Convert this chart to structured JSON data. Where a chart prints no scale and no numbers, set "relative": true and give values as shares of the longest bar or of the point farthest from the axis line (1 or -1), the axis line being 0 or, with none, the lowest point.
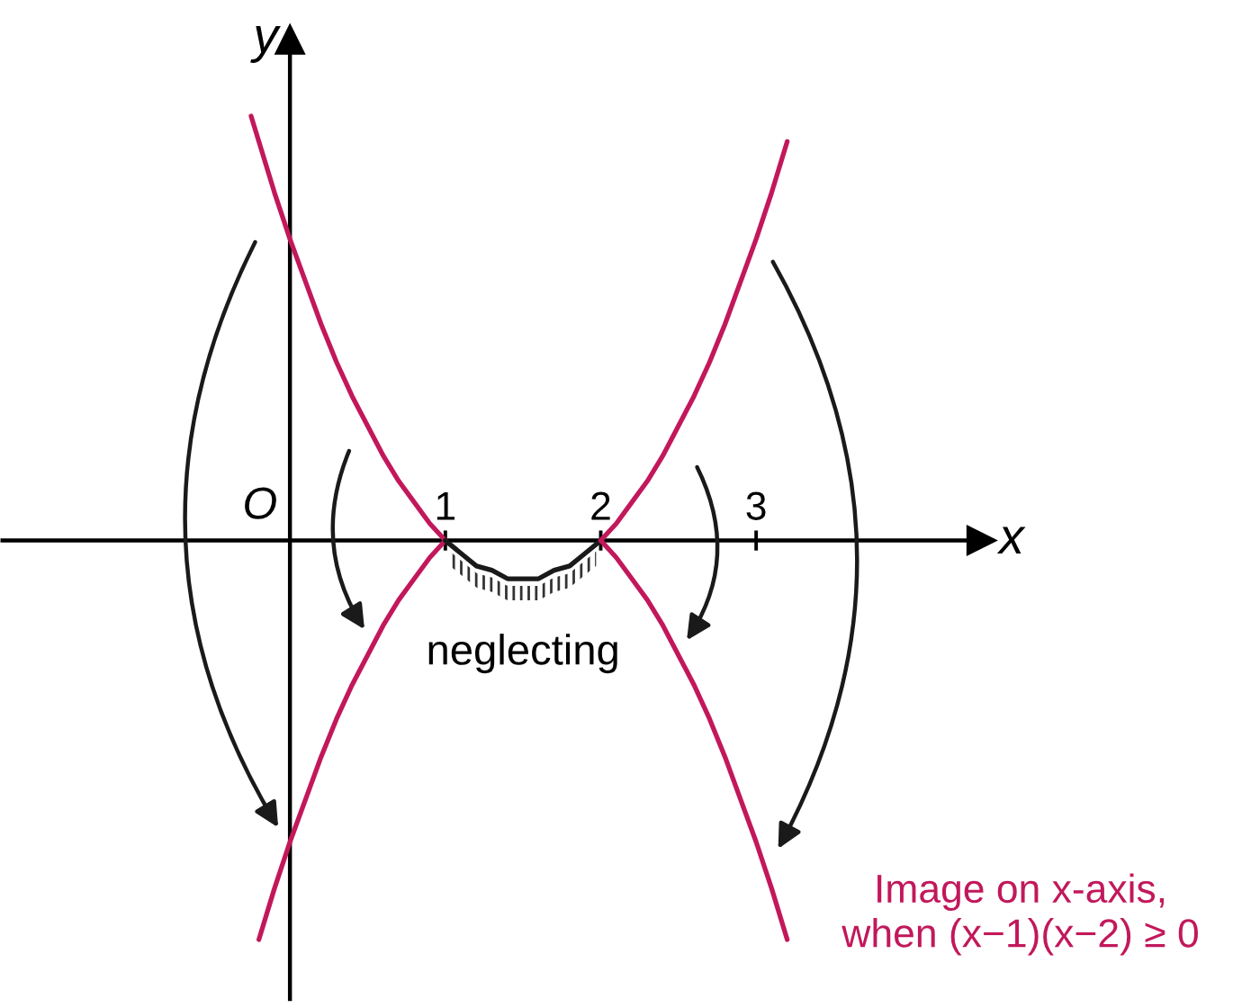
{
  "chart_data": {
    "type": "line",
    "relative": true,
    "xlabel": "x",
    "ylabel": "y",
    "xlim": [
      -1.85,
      4.45
    ],
    "xticks": [
      1,
      2,
      3
    ],
    "tick_labels": "x",
    "series": [
      {
        "color": "#c2185b",
        "x": [
          -0.25,
          -0.2,
          -0.1,
          0,
          0.1,
          0.2,
          0.3,
          0.4,
          0.5,
          0.6,
          0.7,
          0.8,
          0.9,
          1
        ],
        "values": [
          1.0,
          0.94,
          0.82,
          0.71,
          0.61,
          0.51,
          0.42,
          0.34,
          0.27,
          0.2,
          0.14,
          0.09,
          0.04,
          0
        ]
      },
      {
        "color": "#c2185b",
        "x": [
          -0.2,
          -0.1,
          0,
          0.1,
          0.2,
          0.3,
          0.4,
          0.5,
          0.6,
          0.7,
          0.8,
          0.9,
          1
        ],
        "values": [
          -0.94,
          -0.82,
          -0.71,
          -0.61,
          -0.51,
          -0.42,
          -0.34,
          -0.27,
          -0.2,
          -0.14,
          -0.09,
          -0.04,
          0
        ]
      },
      {
        "color": "#1a1a1a",
        "x": [
          1,
          1.1,
          1.2,
          1.3,
          1.4,
          1.5,
          1.6,
          1.7,
          1.8,
          1.9,
          2
        ],
        "values": [
          0,
          -0.03,
          -0.06,
          -0.07,
          -0.09,
          -0.09,
          -0.09,
          -0.07,
          -0.06,
          -0.03,
          0
        ]
      },
      {
        "color": "#c2185b",
        "x": [
          2,
          2.1,
          2.2,
          2.3,
          2.4,
          2.5,
          2.6,
          2.7,
          2.8,
          2.9,
          3,
          3.1,
          3.2
        ],
        "values": [
          0,
          0.04,
          0.09,
          0.14,
          0.2,
          0.27,
          0.34,
          0.42,
          0.51,
          0.61,
          0.71,
          0.82,
          0.94
        ]
      },
      {
        "color": "#c2185b",
        "x": [
          2,
          2.1,
          2.2,
          2.3,
          2.4,
          2.5,
          2.6,
          2.7,
          2.8,
          2.9,
          3,
          3.1,
          3.2
        ],
        "values": [
          0,
          -0.04,
          -0.09,
          -0.14,
          -0.2,
          -0.27,
          -0.34,
          -0.42,
          -0.51,
          -0.61,
          -0.71,
          -0.82,
          -0.94
        ]
      }
    ],
    "annotations": [
      "O",
      {
        "text": "neglecting",
        "x": 1.5,
        "y": -0.09
      },
      "Image on x-axis,\nwhen (x−1)(x−2) ≥ 0"
    ]
  }
}
